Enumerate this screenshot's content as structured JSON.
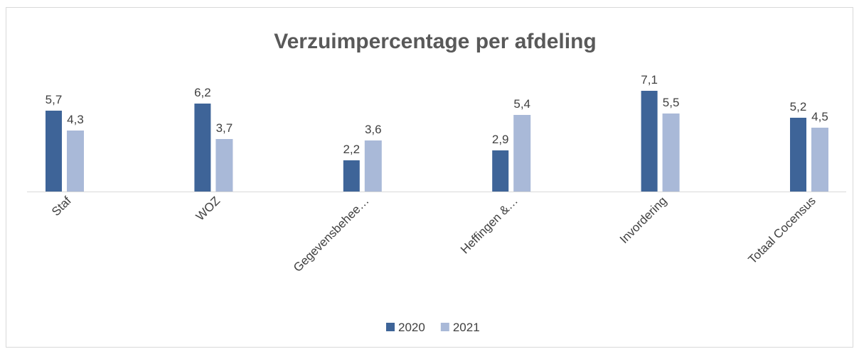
{
  "chart_data": {
    "type": "bar",
    "title": "Verzuimpercentage per afdeling",
    "categories": [
      "Staf",
      "WOZ",
      "Gegevensbehee…",
      "Heffingen &…",
      "Invordering",
      "Totaal Cocensus"
    ],
    "series": [
      {
        "name": "2020",
        "color": "#3e6498",
        "values": [
          5.7,
          6.2,
          2.2,
          2.9,
          7.1,
          5.2
        ],
        "value_labels": [
          "5,7",
          "6,2",
          "2,2",
          "2,9",
          "7,1",
          "5,2"
        ]
      },
      {
        "name": "2021",
        "color": "#a9b9d8",
        "values": [
          4.3,
          3.7,
          3.6,
          5.4,
          5.5,
          4.5
        ],
        "value_labels": [
          "4,3",
          "3,7",
          "3,6",
          "5,4",
          "5,5",
          "4,5"
        ]
      }
    ],
    "ylim": [
      0,
      8
    ],
    "legend": "bottom"
  }
}
